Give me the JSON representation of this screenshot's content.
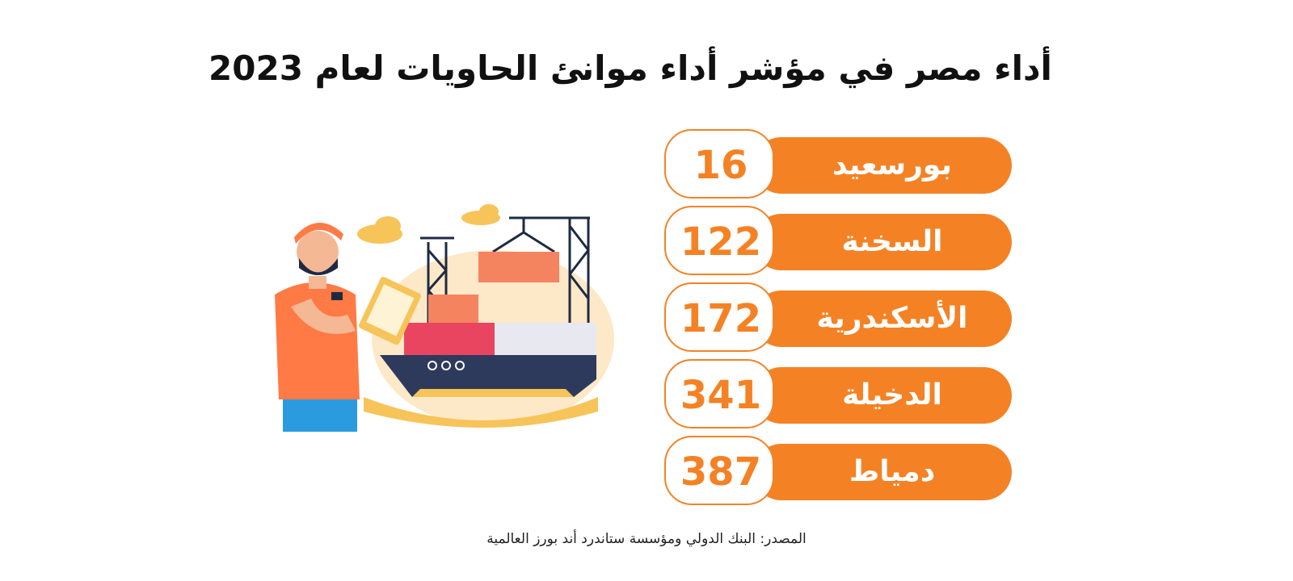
{
  "title": "أداء مصر في مؤشر أداء موانئ الحاويات لعام 2023",
  "source": "المصدر: البنك الدولي ومؤسسة ستاندرد أند بورز العالمية",
  "colors": {
    "accent": "#F48224",
    "title_text": "#111111",
    "label_text": "#FFFFFF"
  },
  "chart_data": {
    "type": "table",
    "title": "أداء مصر في مؤشر أداء موانئ الحاويات لعام 2023",
    "categories": [
      "بورسعيد",
      "السخنة",
      "الأسكندرية",
      "الدخيلة",
      "دمياط"
    ],
    "values": [
      16,
      122,
      172,
      341,
      387
    ]
  },
  "illustration": {
    "icon": "worker-with-clipboard-and-container-ship-illustration"
  }
}
